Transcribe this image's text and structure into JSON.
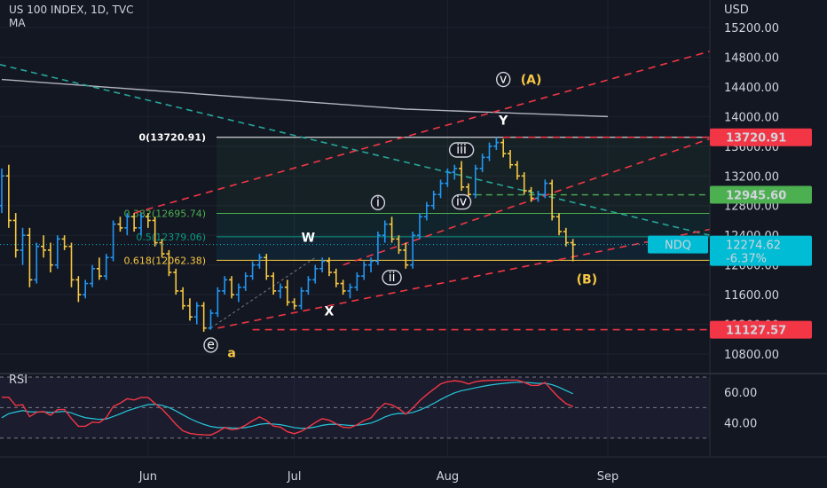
{
  "header": {
    "symbol": "US 100 INDEX, 1D, TVC",
    "indicator": "MA",
    "currency": "USD"
  },
  "chart_data": {
    "type": "candlestick",
    "price_axis": {
      "ticks": [
        15200,
        14800,
        14400,
        14000,
        13600,
        13200,
        12800,
        12400,
        12000,
        11600,
        11200,
        10800
      ],
      "tick_labels": [
        "15200.00",
        "14800.00",
        "14400.00",
        "14000.00",
        "13600.00",
        "13200.00",
        "12800.00",
        "12400.00",
        "12000.00",
        "11600.00",
        "11200.00",
        "10800.00"
      ]
    },
    "time_axis": {
      "labels": [
        {
          "label": "Jun",
          "index": 21
        },
        {
          "label": "Jul",
          "index": 42
        },
        {
          "label": "Aug",
          "index": 64
        },
        {
          "label": "Sep",
          "index": 87
        }
      ]
    },
    "price_tags": [
      {
        "value": "13720.91",
        "color": "#f23645"
      },
      {
        "value": "12945.60",
        "color": "#4caf50"
      },
      {
        "value": "11127.57",
        "color": "#f23645"
      }
    ],
    "last_price": {
      "symbol": "NDQ",
      "value": "12274.62",
      "change": "-6.37%",
      "color": "#00bcd4"
    },
    "fib_levels": [
      {
        "label": "0(13720.91)",
        "price": 13720.91,
        "color": "#ffffff"
      },
      {
        "label": "0.382(12695.74)",
        "price": 12695.74,
        "color": "#4caf50"
      },
      {
        "label": "0.5(12379.06)",
        "price": 12379.06,
        "color": "#089981"
      },
      {
        "label": "0.618(12062.38)",
        "price": 12062.38,
        "color": "#f7c843"
      }
    ],
    "wave_labels": [
      {
        "text": "v",
        "style": "circle",
        "index": 72,
        "price": 14500
      },
      {
        "text": "(A)",
        "style": "yellow",
        "index": 76,
        "price": 14500
      },
      {
        "text": "Y",
        "style": "white",
        "index": 72,
        "price": 13950
      },
      {
        "text": "iii",
        "style": "circle",
        "index": 66,
        "price": 13550
      },
      {
        "text": "iv",
        "style": "circle",
        "index": 66,
        "price": 12850
      },
      {
        "text": "i",
        "style": "circle",
        "index": 54,
        "price": 12840
      },
      {
        "text": "W",
        "style": "white",
        "index": 44,
        "price": 12370
      },
      {
        "text": "ii",
        "style": "circle",
        "index": 56,
        "price": 11830
      },
      {
        "text": "X",
        "style": "white",
        "index": 47,
        "price": 11380
      },
      {
        "text": "(B)",
        "style": "yellow",
        "index": 84,
        "price": 11810
      },
      {
        "text": "e",
        "style": "circle",
        "index": 30,
        "price": 10920
      },
      {
        "text": "a",
        "style": "yellow",
        "index": 33,
        "price": 10820
      }
    ],
    "ohlc": [
      [
        12800,
        13300,
        12700,
        13200
      ],
      [
        13200,
        13350,
        12500,
        12600
      ],
      [
        12600,
        12700,
        12100,
        12200
      ],
      [
        12200,
        12500,
        12000,
        12400
      ],
      [
        12400,
        12500,
        11700,
        11800
      ],
      [
        11800,
        12300,
        11750,
        12250
      ],
      [
        12250,
        12400,
        12100,
        12200
      ],
      [
        12200,
        12300,
        11900,
        12000
      ],
      [
        12000,
        12400,
        11950,
        12350
      ],
      [
        12350,
        12400,
        12200,
        12250
      ],
      [
        12250,
        12300,
        11700,
        11800
      ],
      [
        11800,
        11850,
        11500,
        11600
      ],
      [
        11600,
        11800,
        11550,
        11750
      ],
      [
        11750,
        12000,
        11700,
        11950
      ],
      [
        11950,
        12100,
        11800,
        11850
      ],
      [
        11850,
        12150,
        11800,
        12100
      ],
      [
        12100,
        12600,
        12050,
        12550
      ],
      [
        12550,
        12650,
        12450,
        12500
      ],
      [
        12500,
        12700,
        12400,
        12650
      ],
      [
        12650,
        12700,
        12450,
        12500
      ],
      [
        12500,
        12700,
        12400,
        12650
      ],
      [
        12650,
        12700,
        12500,
        12600
      ],
      [
        12600,
        12650,
        12250,
        12300
      ],
      [
        12300,
        12350,
        12100,
        12150
      ],
      [
        12150,
        12200,
        11850,
        11900
      ],
      [
        11900,
        11950,
        11600,
        11650
      ],
      [
        11650,
        11700,
        11400,
        11450
      ],
      [
        11450,
        11550,
        11250,
        11300
      ],
      [
        11300,
        11500,
        11200,
        11450
      ],
      [
        11450,
        11500,
        11100,
        11150
      ],
      [
        11150,
        11400,
        11127,
        11350
      ],
      [
        11350,
        11700,
        11300,
        11650
      ],
      [
        11650,
        11850,
        11600,
        11800
      ],
      [
        11800,
        11850,
        11550,
        11600
      ],
      [
        11600,
        11750,
        11500,
        11700
      ],
      [
        11700,
        11900,
        11650,
        11850
      ],
      [
        11850,
        12050,
        11800,
        12000
      ],
      [
        12000,
        12150,
        11950,
        12100
      ],
      [
        12100,
        12150,
        11800,
        11850
      ],
      [
        11850,
        11900,
        11600,
        11650
      ],
      [
        11650,
        11750,
        11550,
        11700
      ],
      [
        11700,
        11800,
        11450,
        11500
      ],
      [
        11500,
        11550,
        11400,
        11450
      ],
      [
        11450,
        11700,
        11400,
        11650
      ],
      [
        11650,
        11850,
        11600,
        11800
      ],
      [
        11800,
        12000,
        11750,
        11950
      ],
      [
        11950,
        12100,
        11900,
        12050
      ],
      [
        12050,
        12100,
        11850,
        11900
      ],
      [
        11900,
        11950,
        11700,
        11750
      ],
      [
        11750,
        11800,
        11600,
        11650
      ],
      [
        11650,
        11750,
        11550,
        11700
      ],
      [
        11700,
        11900,
        11650,
        11850
      ],
      [
        11850,
        12050,
        11800,
        12000
      ],
      [
        12000,
        12100,
        11900,
        12050
      ],
      [
        12050,
        12450,
        12000,
        12400
      ],
      [
        12400,
        12600,
        12300,
        12550
      ],
      [
        12550,
        12650,
        12300,
        12350
      ],
      [
        12350,
        12400,
        12150,
        12200
      ],
      [
        12200,
        12300,
        11950,
        12000
      ],
      [
        12000,
        12450,
        11950,
        12400
      ],
      [
        12400,
        12700,
        12350,
        12650
      ],
      [
        12650,
        12850,
        12600,
        12800
      ],
      [
        12800,
        13000,
        12750,
        12950
      ],
      [
        12950,
        13150,
        12900,
        13100
      ],
      [
        13100,
        13300,
        13050,
        13250
      ],
      [
        13250,
        13350,
        13150,
        13300
      ],
      [
        13300,
        13400,
        13000,
        13050
      ],
      [
        13050,
        13100,
        12900,
        12950
      ],
      [
        12950,
        13350,
        12900,
        13300
      ],
      [
        13300,
        13500,
        13250,
        13450
      ],
      [
        13450,
        13650,
        13400,
        13600
      ],
      [
        13600,
        13720,
        13550,
        13650
      ],
      [
        13650,
        13700,
        13450,
        13500
      ],
      [
        13500,
        13550,
        13300,
        13350
      ],
      [
        13350,
        13400,
        13150,
        13200
      ],
      [
        13200,
        13250,
        12950,
        13000
      ],
      [
        13000,
        13050,
        12850,
        12900
      ],
      [
        12900,
        13000,
        12850,
        12950
      ],
      [
        12950,
        13150,
        12900,
        13100
      ],
      [
        13100,
        13150,
        12600,
        12650
      ],
      [
        12650,
        12700,
        12400,
        12450
      ],
      [
        12450,
        12500,
        12250,
        12300
      ],
      [
        12300,
        12350,
        12050,
        12274.62
      ]
    ],
    "ma": [
      14500,
      14480,
      14460,
      14440,
      14420,
      14400,
      14380,
      14360,
      14340,
      14320,
      14300,
      14280,
      14260,
      14240,
      14220,
      14200,
      14180,
      14160,
      14140,
      14120,
      14100,
      14090,
      14080,
      14070,
      14060,
      14050,
      14040,
      14030,
      14020,
      14010,
      14000
    ],
    "rsi_axis": {
      "ticks": [
        60,
        40
      ],
      "tick_labels": [
        "60.00",
        "40.00"
      ]
    },
    "rsi_label": "RSI"
  }
}
